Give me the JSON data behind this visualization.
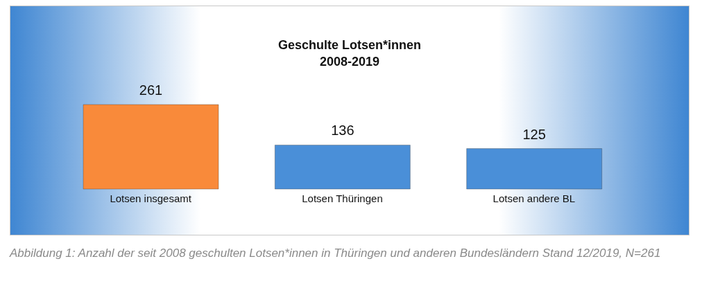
{
  "chart_data": {
    "type": "bar",
    "title": "Geschulte Lotsen*innen\n2008-2019",
    "categories": [
      "Lotsen insgesamt",
      "Lotsen Thüringen",
      "Lotsen andere BL"
    ],
    "values": [
      261,
      136,
      125
    ],
    "colors": [
      "#f98a3a",
      "#4a8fd8",
      "#4a8fd8"
    ],
    "data_labels": true,
    "annotations": [
      "Abbildung 1: Anzahl der seit 2008 geschulten Lotsen*innen in Thüringen und anderen Bundesländern Stand 12/2019, N=261"
    ]
  }
}
